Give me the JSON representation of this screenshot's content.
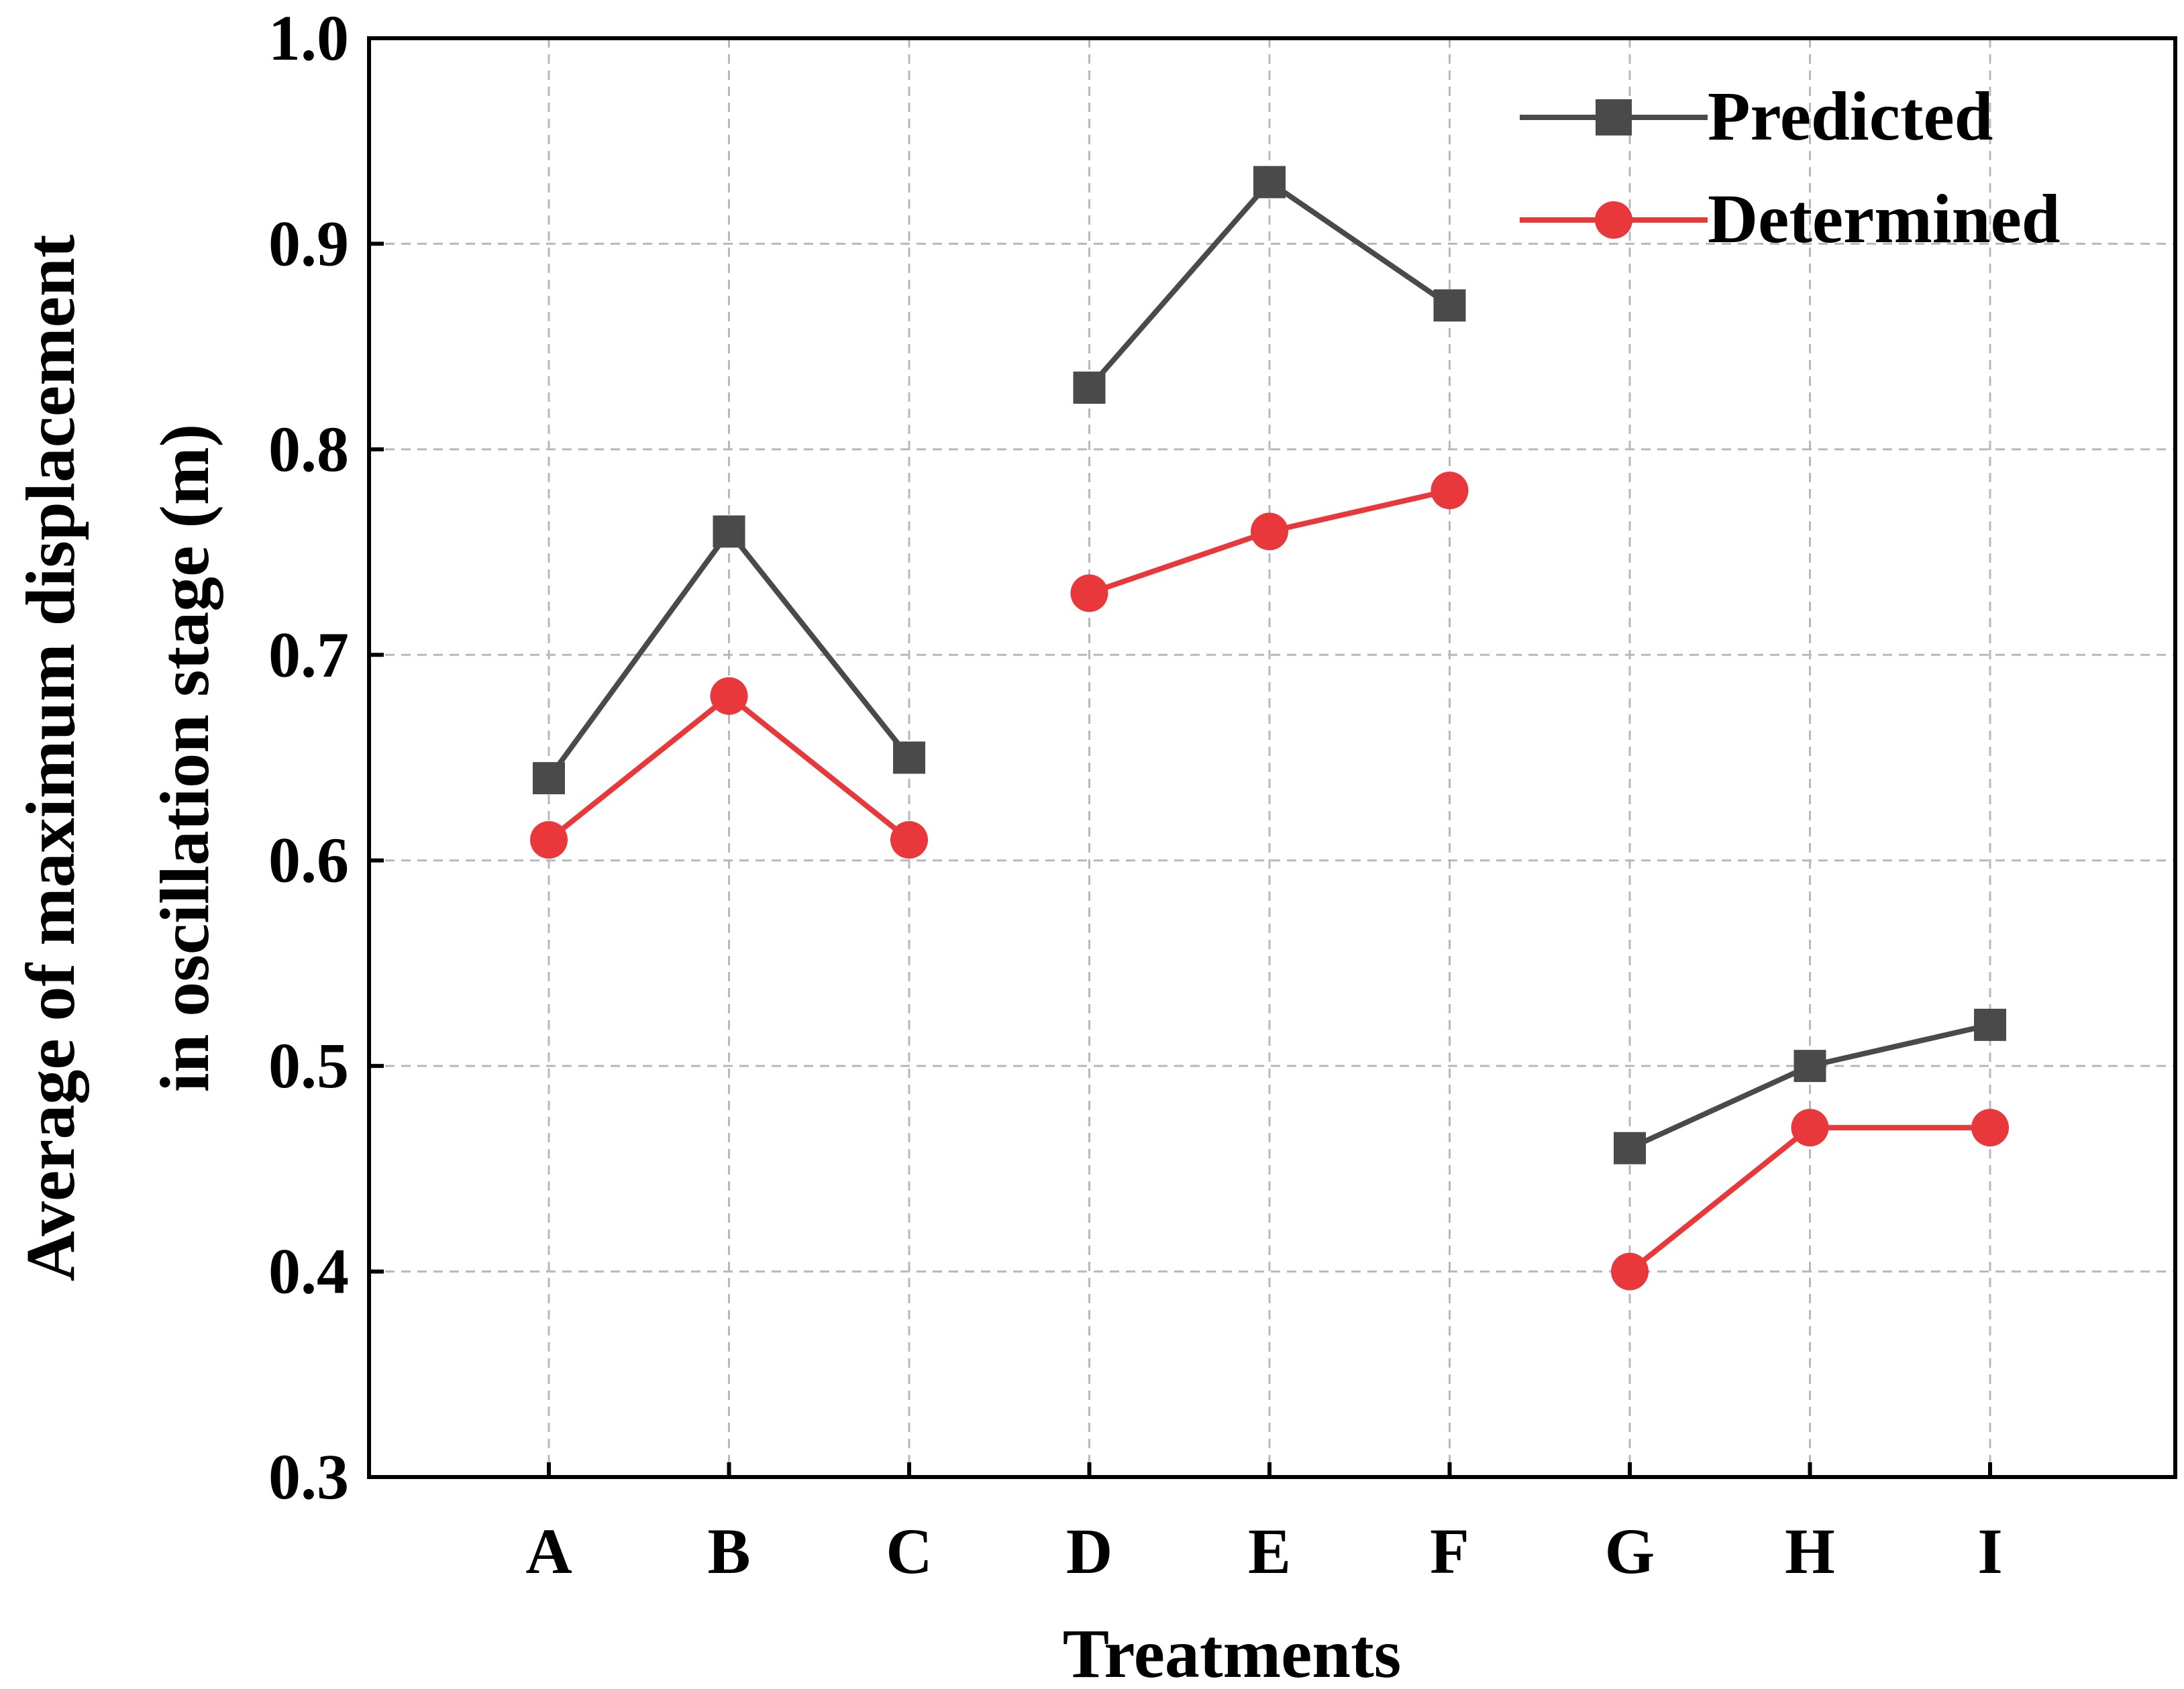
{
  "chart_data": {
    "type": "line",
    "xlabel": "Treatments",
    "ylabel_lines": [
      "Average of maximum displacement",
      "in oscillation stage (m)"
    ],
    "categories": [
      "A",
      "B",
      "C",
      "D",
      "E",
      "F",
      "G",
      "H",
      "I"
    ],
    "ylim": [
      0.3,
      1.0
    ],
    "yticks": [
      "0.3",
      "0.4",
      "0.5",
      "0.6",
      "0.7",
      "0.8",
      "0.9",
      "1.0"
    ],
    "grid": true,
    "legend_position": "top-right",
    "segments": [
      [
        0,
        1,
        2
      ],
      [
        3,
        4,
        5
      ],
      [
        6,
        7,
        8
      ]
    ],
    "series": [
      {
        "name": "Predicted",
        "color": "#4a4a4a",
        "marker": "square",
        "values": [
          0.64,
          0.76,
          0.65,
          0.83,
          0.93,
          0.87,
          0.46,
          0.5,
          0.52
        ]
      },
      {
        "name": "Determined",
        "color": "#e8383c",
        "marker": "circle",
        "values": [
          0.61,
          0.68,
          0.61,
          0.73,
          0.76,
          0.78,
          0.4,
          0.47,
          0.47
        ]
      }
    ]
  }
}
